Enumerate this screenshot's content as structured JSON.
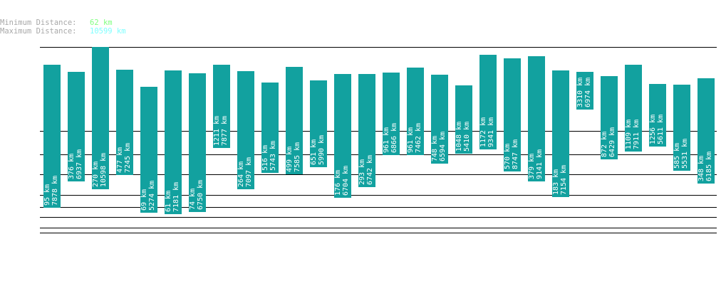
{
  "stats": {
    "min_label": "Minimum Distance:",
    "min_value": "62 km",
    "max_label": "Maximum Distance:",
    "max_value": "10599 km"
  },
  "colors": {
    "bar": "#12a19f",
    "grid": "#000000",
    "min": "#80ff80",
    "max": "#80ffff",
    "label": "#a8a8a8"
  },
  "chart_data": {
    "type": "bar",
    "subtype": "floating-range",
    "orientation": "vertical",
    "label_unit": "km",
    "series": [
      {
        "low": 95,
        "high": 7878
      },
      {
        "low": 376,
        "high": 6937
      },
      {
        "low": 270,
        "high": 10598
      },
      {
        "low": 477,
        "high": 7245
      },
      {
        "low": 69,
        "high": 5274
      },
      {
        "low": 61,
        "high": 7181
      },
      {
        "low": 74,
        "high": 6750
      },
      {
        "low": 1211,
        "high": 7877
      },
      {
        "low": 264,
        "high": 7097
      },
      {
        "low": 516,
        "high": 5743
      },
      {
        "low": 499,
        "high": 7585
      },
      {
        "low": 651,
        "high": 5990
      },
      {
        "low": 176,
        "high": 6704
      },
      {
        "low": 293,
        "high": 6742
      },
      {
        "low": 961,
        "high": 6866
      },
      {
        "low": 961,
        "high": 7462
      },
      {
        "low": 748,
        "high": 6594
      },
      {
        "low": 1048,
        "high": 5410
      },
      {
        "low": 1172,
        "high": 9341
      },
      {
        "low": 570,
        "high": 8747
      },
      {
        "low": 379,
        "high": 9141
      },
      {
        "low": 183,
        "high": 7154
      },
      {
        "low": 3310,
        "high": 6974
      },
      {
        "low": 872,
        "high": 6429
      },
      {
        "low": 1109,
        "high": 7911
      },
      {
        "low": 1256,
        "high": 5611
      },
      {
        "low": 585,
        "high": 5531
      },
      {
        "low": 348,
        "high": 6185
      }
    ],
    "grid": true
  }
}
